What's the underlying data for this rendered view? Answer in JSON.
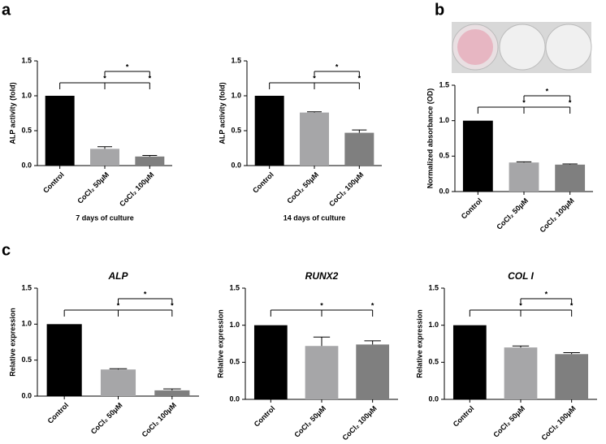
{
  "panel_labels": [
    "a",
    "b",
    "c"
  ],
  "chart_data": [
    {
      "type": "bar",
      "ylabel": "ALP activity (fold)",
      "xlabel": "7 days of culture",
      "categories": [
        "Control",
        "CoCl₂ 50μM",
        "CoCl₂ 100μM"
      ],
      "values": [
        1.0,
        0.24,
        0.13
      ],
      "errors": [
        0,
        0.03,
        0.015
      ],
      "colors": [
        "#000000",
        "#a6a6a8",
        "#7f7f7f"
      ],
      "ylim": [
        0,
        1.5
      ],
      "yticks": [
        {
          "value": 0,
          "label": "0.0"
        },
        {
          "value": 0.5,
          "label": "0.5"
        },
        {
          "value": 1,
          "label": "1.0"
        },
        {
          "value": 1.5,
          "label": "1.5"
        }
      ],
      "brackets": [
        {
          "from": 0,
          "to": [
            1,
            2
          ],
          "labels": [
            "*",
            "*"
          ]
        },
        {
          "from": 1,
          "to": [
            2
          ],
          "labels": [
            "*"
          ]
        }
      ]
    },
    {
      "type": "bar",
      "ylabel": "ALP activity (fold)",
      "xlabel": "14 days of culture",
      "categories": [
        "Control",
        "CoCl₂ 50μM",
        "CoCl₂ 100μM"
      ],
      "values": [
        1.0,
        0.76,
        0.47
      ],
      "errors": [
        0,
        0.01,
        0.04
      ],
      "colors": [
        "#000000",
        "#a6a6a8",
        "#7f7f7f"
      ],
      "ylim": [
        0,
        1.5
      ],
      "yticks": [
        {
          "value": 0,
          "label": "0.0"
        },
        {
          "value": 0.5,
          "label": "0.5"
        },
        {
          "value": 1,
          "label": "1.0"
        },
        {
          "value": 1.5,
          "label": "1.5"
        }
      ],
      "brackets": [
        {
          "from": 0,
          "to": [
            1,
            2
          ],
          "labels": [
            "*",
            "*"
          ]
        },
        {
          "from": 1,
          "to": [
            2
          ],
          "labels": [
            "*"
          ]
        }
      ]
    },
    {
      "type": "bar",
      "ylabel": "Normalized absorbance (OD)",
      "categories": [
        "Control",
        "CoCl₂ 50μM",
        "CoCl₂ 100μM"
      ],
      "values": [
        1.0,
        0.41,
        0.38
      ],
      "errors": [
        0,
        0.01,
        0.01
      ],
      "colors": [
        "#000000",
        "#a6a6a8",
        "#7f7f7f"
      ],
      "ylim": [
        0,
        1.5
      ],
      "yticks": [
        {
          "value": 0,
          "label": "0.0"
        },
        {
          "value": 0.5,
          "label": "0.5"
        },
        {
          "value": 1,
          "label": "1.0"
        },
        {
          "value": 1.5,
          "label": "1.5"
        }
      ],
      "brackets": [
        {
          "from": 0,
          "to": [
            1,
            2
          ],
          "labels": [
            "*",
            "*"
          ]
        },
        {
          "from": 1,
          "to": [
            2
          ],
          "labels": [
            "*"
          ]
        }
      ]
    },
    {
      "type": "bar",
      "title": "ALP",
      "ylabel": "Relative expression",
      "categories": [
        "Control",
        "CoCl₂ 50μM",
        "CoCl₂ 100μM"
      ],
      "values": [
        1.0,
        0.37,
        0.08
      ],
      "errors": [
        0,
        0.01,
        0.02
      ],
      "colors": [
        "#000000",
        "#a6a6a8",
        "#7f7f7f"
      ],
      "ylim": [
        0,
        1.5
      ],
      "yticks": [
        {
          "value": 0,
          "label": "0.0"
        },
        {
          "value": 0.5,
          "label": "0.5"
        },
        {
          "value": 1,
          "label": "1.0"
        },
        {
          "value": 1.5,
          "label": "1.5"
        }
      ],
      "brackets": [
        {
          "from": 0,
          "to": [
            1,
            2
          ],
          "labels": [
            "*",
            "*"
          ]
        },
        {
          "from": 1,
          "to": [
            2
          ],
          "labels": [
            "*"
          ]
        }
      ]
    },
    {
      "type": "bar",
      "title": "RUNX2",
      "ylabel": "Relative expression",
      "categories": [
        "Control",
        "CoCl₂ 50μM",
        "CoCl₂ 100μM"
      ],
      "values": [
        1.0,
        0.72,
        0.74
      ],
      "errors": [
        0,
        0.12,
        0.05
      ],
      "colors": [
        "#000000",
        "#a6a6a8",
        "#7f7f7f"
      ],
      "ylim": [
        0,
        1.5
      ],
      "yticks": [
        {
          "value": 0,
          "label": "0.0"
        },
        {
          "value": 0.5,
          "label": "0.5"
        },
        {
          "value": 1,
          "label": "1.0"
        },
        {
          "value": 1.5,
          "label": "1.5"
        }
      ],
      "brackets": [
        {
          "from": 0,
          "to": [
            1,
            2
          ],
          "labels": [
            "*",
            "*"
          ]
        }
      ]
    },
    {
      "type": "bar",
      "title": "COL I",
      "ylabel": "Relative expression",
      "categories": [
        "Control",
        "CoCl₂ 50μM",
        "CoCl₂ 100μM"
      ],
      "values": [
        1.0,
        0.7,
        0.61
      ],
      "errors": [
        0,
        0.02,
        0.02
      ],
      "colors": [
        "#000000",
        "#a6a6a8",
        "#7f7f7f"
      ],
      "ylim": [
        0,
        1.5
      ],
      "yticks": [
        {
          "value": 0,
          "label": "0.0"
        },
        {
          "value": 0.5,
          "label": "0.5"
        },
        {
          "value": 1,
          "label": "1.0"
        },
        {
          "value": 1.5,
          "label": "1.5"
        }
      ],
      "brackets": [
        {
          "from": 0,
          "to": [
            1,
            2
          ],
          "labels": [
            "*",
            "*"
          ]
        },
        {
          "from": 1,
          "to": [
            2
          ],
          "labels": [
            "*"
          ]
        }
      ]
    }
  ]
}
